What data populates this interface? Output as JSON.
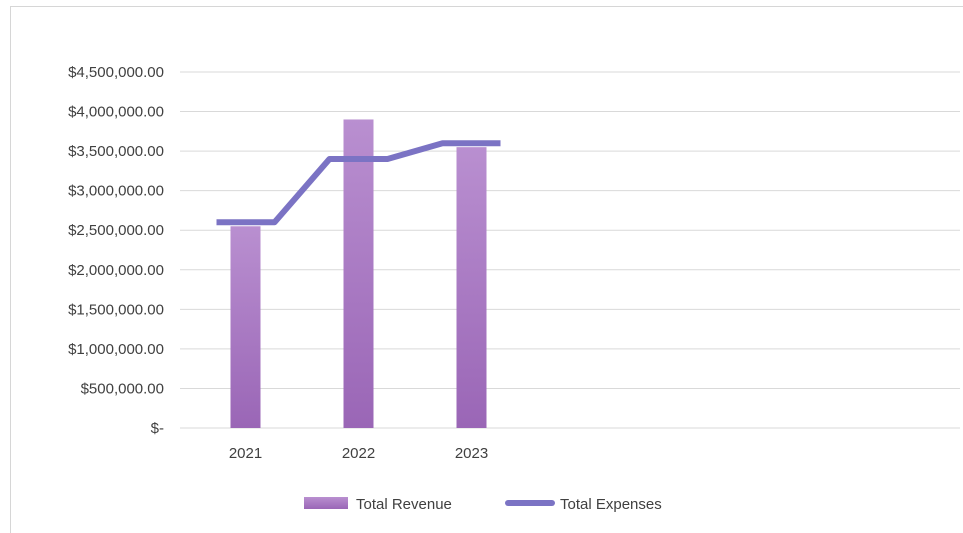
{
  "chart_data": {
    "type": "bar",
    "categories": [
      "2021",
      "2022",
      "2023"
    ],
    "series": [
      {
        "name": "Total Revenue",
        "type": "bar",
        "values": [
          2550000,
          3900000,
          3550000
        ],
        "color": "#a774c0"
      },
      {
        "name": "Total Expenses",
        "type": "line",
        "values": [
          2600000,
          3400000,
          3600000
        ],
        "color": "#7b73c4"
      }
    ],
    "y_tick_labels": [
      "$-",
      "$500,000.00",
      "$1,000,000.00",
      "$1,500,000.00",
      "$2,000,000.00",
      "$2,500,000.00",
      "$3,000,000.00",
      "$3,500,000.00",
      "$4,000,000.00",
      "$4,500,000.00"
    ],
    "ylim": [
      0,
      4500000
    ],
    "ytick_step": 500000,
    "grid": true,
    "legend_position": "bottom",
    "title": "",
    "xlabel": "",
    "ylabel": ""
  }
}
